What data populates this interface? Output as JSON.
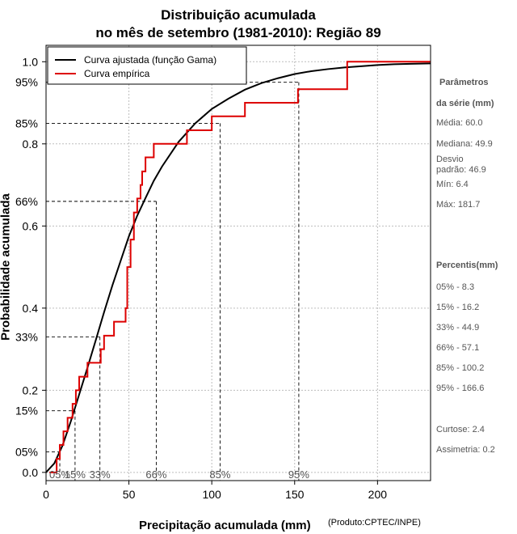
{
  "chart_data": {
    "type": "line",
    "title_line1": "Distribuição acumulada",
    "title_line2": "no mês de setembro (1981-2010): Região 89",
    "xlabel": "Precipitação acumulada (mm)",
    "ylabel": "Probabilidade acumulada",
    "credit": "(Produto:CPTEC/INPE)",
    "xlim": [
      0,
      232
    ],
    "ylim": [
      -0.02,
      1.04
    ],
    "x_ticks": [
      0,
      50,
      100,
      150,
      200
    ],
    "x_tick_labels": [
      "0",
      "50",
      "100",
      "150",
      "200"
    ],
    "y_ticks": [
      0.0,
      0.2,
      0.4,
      0.6,
      0.8,
      1.0
    ],
    "y_tick_labels": [
      "0.0",
      "0.2",
      "0.4",
      "0.6",
      "0.8",
      "1.0"
    ],
    "grid": true,
    "legend_position": "top-left",
    "series": [
      {
        "name": "Curva ajustada (função Gama)",
        "color": "#000000",
        "x": [
          0,
          5,
          10,
          15,
          20,
          25,
          30,
          35,
          40,
          45,
          50,
          55,
          60,
          65,
          70,
          80,
          90,
          100,
          110,
          120,
          130,
          140,
          150,
          160,
          170,
          180,
          190,
          200,
          210,
          220,
          232
        ],
        "y": [
          0,
          0.022,
          0.066,
          0.125,
          0.19,
          0.255,
          0.322,
          0.39,
          0.455,
          0.515,
          0.575,
          0.625,
          0.668,
          0.71,
          0.745,
          0.805,
          0.85,
          0.885,
          0.91,
          0.932,
          0.948,
          0.96,
          0.97,
          0.977,
          0.982,
          0.986,
          0.989,
          0.992,
          0.994,
          0.995,
          0.996
        ]
      },
      {
        "name": "Curva empírica",
        "color": "#dd0000",
        "x": [
          2,
          6.4,
          8.3,
          10.5,
          13,
          16,
          18,
          20,
          25,
          27,
          33,
          35,
          41,
          48,
          49,
          51,
          53,
          55,
          57,
          58,
          60,
          62,
          65,
          85,
          100,
          120,
          152,
          181.7,
          232
        ],
        "y": [
          0.0,
          0.033,
          0.067,
          0.1,
          0.133,
          0.167,
          0.2,
          0.233,
          0.267,
          0.267,
          0.3,
          0.333,
          0.367,
          0.4,
          0.5,
          0.567,
          0.633,
          0.667,
          0.7,
          0.733,
          0.767,
          0.767,
          0.8,
          0.833,
          0.867,
          0.9,
          0.933,
          1.0,
          1.0
        ]
      }
    ],
    "percentile_markers": [
      {
        "label": "05%",
        "p": 0.05,
        "x": 8.3
      },
      {
        "label": "15%",
        "p": 0.15,
        "x": 17.5
      },
      {
        "label": "33%",
        "p": 0.33,
        "x": 32.5
      },
      {
        "label": "66%",
        "p": 0.66,
        "x": 66.5
      },
      {
        "label": "85%",
        "p": 0.85,
        "x": 105
      },
      {
        "label": "95%",
        "p": 0.95,
        "x": 152.5
      }
    ]
  },
  "stats": {
    "params_heading": "Parâmetros",
    "params_heading2": "da série (mm)",
    "media": "Média: 60.0",
    "mediana": "Mediana: 49.9",
    "desvio": "Desvio\npadrão: 46.9",
    "min": "Mín: 6.4",
    "max": "Máx: 181.7",
    "percentis_heading": "Percentis(mm)",
    "p05": "05% - 8.3",
    "p15": "15% - 16.2",
    "p33": "33% - 44.9",
    "p66": "66% - 57.1",
    "p85": "85% - 100.2",
    "p95": "95% - 166.6",
    "curtose": "Curtose: 2.4",
    "assimetria": "Assimetria: 0.2"
  }
}
